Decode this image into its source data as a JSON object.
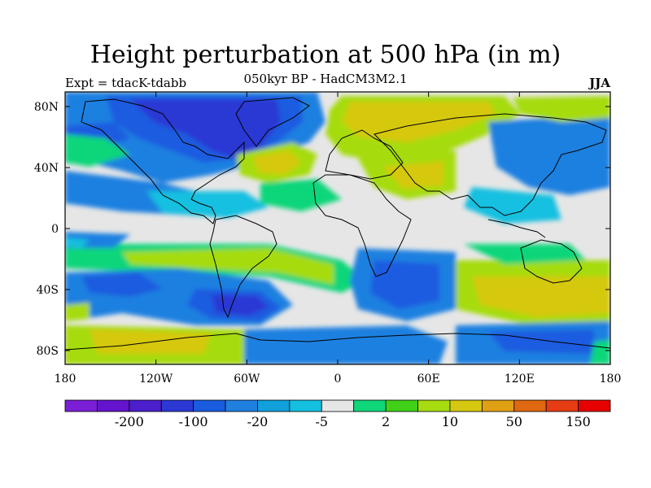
{
  "title": "Height perturbation at 500 hPa (in m)",
  "subtitle": "050kyr BP - HadCM3M2.1",
  "experiment": "Expt = tdacK-tdabb",
  "season": "JJA",
  "map": {
    "projection": "cylindrical-equidistant",
    "lat_ticks": [
      "80N",
      "40N",
      "0",
      "40S",
      "80S"
    ],
    "lon_ticks": [
      "180",
      "120W",
      "60W",
      "0",
      "60E",
      "120E",
      "180"
    ],
    "background_color": "#e6e6e6",
    "coastline_color": "#000000"
  },
  "colorbar": {
    "colors": [
      "#7a1fd6",
      "#6414cc",
      "#4b1fcc",
      "#2b38d4",
      "#1a5ce0",
      "#1f80e0",
      "#12a0dc",
      "#14c0e0",
      "#e6e6e6",
      "#10d67a",
      "#40d018",
      "#a6dc10",
      "#d6c810",
      "#e0a014",
      "#e06810",
      "#e63c14",
      "#e60000"
    ],
    "labels": [
      "-200",
      "-100",
      "-20",
      "-5",
      "2",
      "10",
      "50",
      "150"
    ]
  }
}
